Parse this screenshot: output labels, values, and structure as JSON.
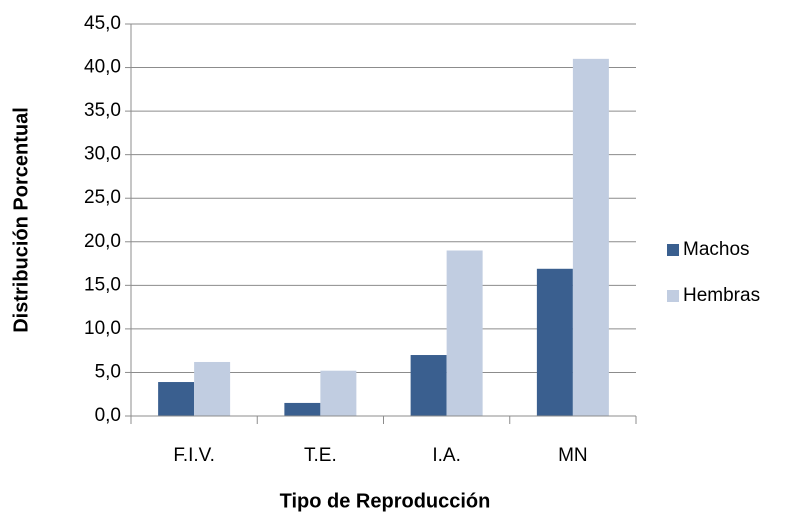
{
  "chart_data": {
    "type": "bar",
    "x_label": "Tipo de Reproducción",
    "y_label": "Distribución Porcentual",
    "categories": [
      "F.I.V.",
      "T.E.",
      "I.A.",
      "MN"
    ],
    "series": [
      {
        "name": "Machos",
        "color": "#3a5f8f",
        "values": [
          3.9,
          1.5,
          7.0,
          16.9
        ]
      },
      {
        "name": "Hembras",
        "color": "#c1cde1",
        "values": [
          6.2,
          5.2,
          19.0,
          41.0
        ]
      }
    ],
    "ylim": [
      0,
      45
    ],
    "yticks": [
      {
        "value": 0,
        "label": "0,0"
      },
      {
        "value": 5,
        "label": "5,0"
      },
      {
        "value": 10,
        "label": "10,0"
      },
      {
        "value": 15,
        "label": "15,0"
      },
      {
        "value": 20,
        "label": "20,0"
      },
      {
        "value": 25,
        "label": "25,0"
      },
      {
        "value": 30,
        "label": "30,0"
      },
      {
        "value": 35,
        "label": "35,0"
      },
      {
        "value": 40,
        "label": "40,0"
      },
      {
        "value": 45,
        "label": "45,0"
      }
    ],
    "grid": true,
    "legend": "right"
  }
}
